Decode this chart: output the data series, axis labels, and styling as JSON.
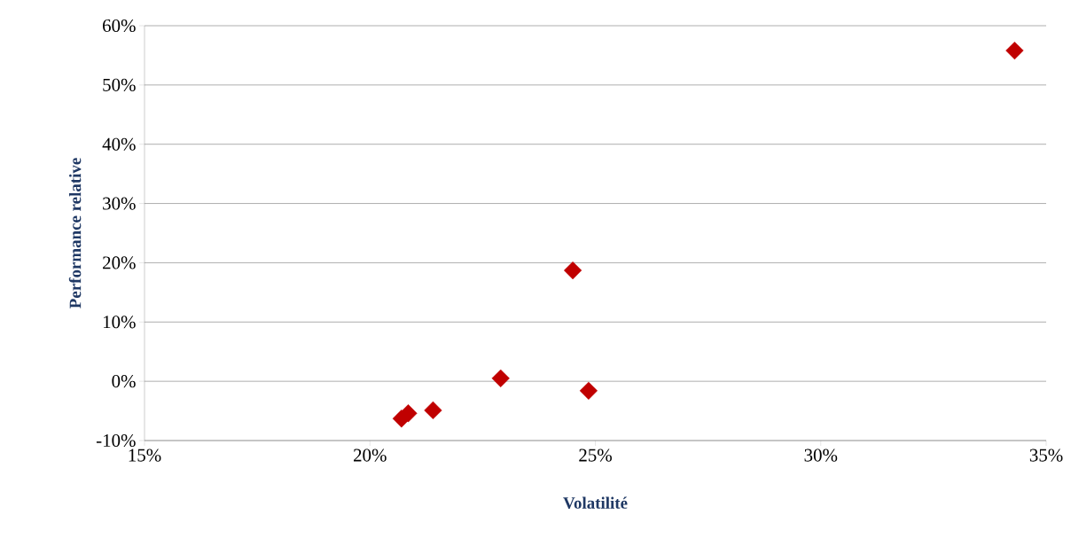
{
  "chart_data": {
    "type": "scatter",
    "xlabel": "Volatilité",
    "ylabel": "Performance relative",
    "x": [
      34.3,
      24.5,
      22.9,
      24.85,
      21.4,
      20.85,
      20.7
    ],
    "series": [
      {
        "color": "#c00000",
        "values": [
          55.8,
          18.7,
          0.5,
          -1.6,
          -4.9,
          -5.4,
          -6.3
        ]
      }
    ],
    "xlim": [
      15,
      35
    ],
    "ylim": [
      -10,
      60
    ],
    "xticks": [
      {
        "value": 15,
        "label": "15%"
      },
      {
        "value": 20,
        "label": "20%"
      },
      {
        "value": 25,
        "label": "25%"
      },
      {
        "value": 30,
        "label": "30%"
      },
      {
        "value": 35,
        "label": "35%"
      }
    ],
    "yticks": [
      {
        "value": -10,
        "label": "-10%"
      },
      {
        "value": 0,
        "label": "0%"
      },
      {
        "value": 10,
        "label": "10%"
      },
      {
        "value": 20,
        "label": "20%"
      },
      {
        "value": 30,
        "label": "30%"
      },
      {
        "value": 40,
        "label": "40%"
      },
      {
        "value": 50,
        "label": "50%"
      },
      {
        "value": 60,
        "label": "60%"
      }
    ],
    "grid": "y",
    "marker": "diamond"
  }
}
